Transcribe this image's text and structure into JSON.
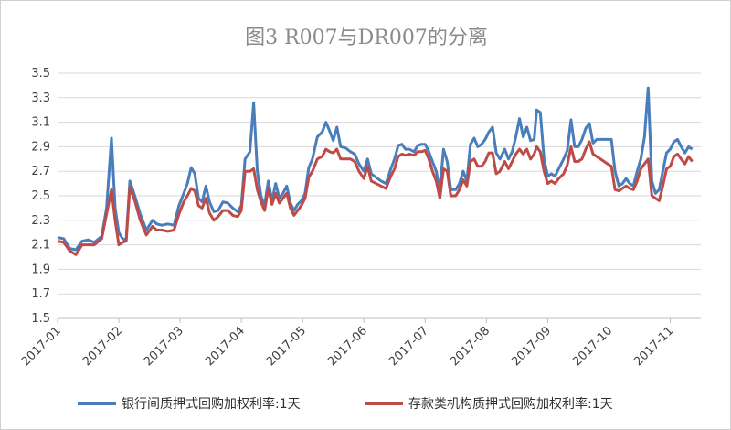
{
  "chart_data": {
    "type": "line",
    "title": "图3 R007与DR007的分离",
    "xlabel": "",
    "ylabel": "",
    "ylim": [
      1.5,
      3.5
    ],
    "yticks": [
      "3.5",
      "3.3",
      "3.1",
      "2.9",
      "2.7",
      "2.5",
      "2.3",
      "2.1",
      "1.9",
      "1.7",
      "1.5"
    ],
    "x_tick_labels": [
      "2017-01",
      "2017-02",
      "2017-03",
      "2017-04",
      "2017-05",
      "2017-06",
      "2017-07",
      "2017-08",
      "2017-09",
      "2017-10",
      "2017-11"
    ],
    "grid": true,
    "legend_position": "bottom",
    "series": [
      {
        "name": "银行间质押式回购加权利率:1天",
        "color": "#4a7ebb",
        "points": [
          [
            0.0,
            2.16
          ],
          [
            0.1,
            2.15
          ],
          [
            0.2,
            2.07
          ],
          [
            0.3,
            2.06
          ],
          [
            0.4,
            2.13
          ],
          [
            0.5,
            2.14
          ],
          [
            0.6,
            2.12
          ],
          [
            0.72,
            2.17
          ],
          [
            0.8,
            2.4
          ],
          [
            0.88,
            2.97
          ],
          [
            0.94,
            2.4
          ],
          [
            1.0,
            2.2
          ],
          [
            1.06,
            2.15
          ],
          [
            1.12,
            2.14
          ],
          [
            1.18,
            2.62
          ],
          [
            1.26,
            2.5
          ],
          [
            1.35,
            2.35
          ],
          [
            1.45,
            2.22
          ],
          [
            1.55,
            2.3
          ],
          [
            1.62,
            2.27
          ],
          [
            1.7,
            2.26
          ],
          [
            1.8,
            2.27
          ],
          [
            1.9,
            2.26
          ],
          [
            1.98,
            2.42
          ],
          [
            2.06,
            2.52
          ],
          [
            2.12,
            2.6
          ],
          [
            2.18,
            2.73
          ],
          [
            2.24,
            2.68
          ],
          [
            2.3,
            2.48
          ],
          [
            2.36,
            2.45
          ],
          [
            2.42,
            2.58
          ],
          [
            2.48,
            2.45
          ],
          [
            2.55,
            2.37
          ],
          [
            2.62,
            2.38
          ],
          [
            2.7,
            2.45
          ],
          [
            2.78,
            2.44
          ],
          [
            2.86,
            2.4
          ],
          [
            2.94,
            2.37
          ],
          [
            3.0,
            2.42
          ],
          [
            3.06,
            2.8
          ],
          [
            3.14,
            2.86
          ],
          [
            3.2,
            3.26
          ],
          [
            3.26,
            2.7
          ],
          [
            3.32,
            2.5
          ],
          [
            3.38,
            2.42
          ],
          [
            3.44,
            2.62
          ],
          [
            3.5,
            2.46
          ],
          [
            3.56,
            2.6
          ],
          [
            3.62,
            2.48
          ],
          [
            3.68,
            2.52
          ],
          [
            3.74,
            2.58
          ],
          [
            3.8,
            2.44
          ],
          [
            3.86,
            2.38
          ],
          [
            3.92,
            2.43
          ],
          [
            3.98,
            2.46
          ],
          [
            4.04,
            2.52
          ],
          [
            4.1,
            2.73
          ],
          [
            4.16,
            2.8
          ],
          [
            4.24,
            2.98
          ],
          [
            4.32,
            3.02
          ],
          [
            4.38,
            3.1
          ],
          [
            4.44,
            3.03
          ],
          [
            4.5,
            2.95
          ],
          [
            4.56,
            3.06
          ],
          [
            4.62,
            2.9
          ],
          [
            4.7,
            2.89
          ],
          [
            4.78,
            2.86
          ],
          [
            4.85,
            2.84
          ],
          [
            4.92,
            2.76
          ],
          [
            5.0,
            2.7
          ],
          [
            5.06,
            2.8
          ],
          [
            5.12,
            2.68
          ],
          [
            5.2,
            2.65
          ],
          [
            5.28,
            2.62
          ],
          [
            5.36,
            2.6
          ],
          [
            5.44,
            2.72
          ],
          [
            5.5,
            2.8
          ],
          [
            5.56,
            2.91
          ],
          [
            5.62,
            2.92
          ],
          [
            5.68,
            2.88
          ],
          [
            5.74,
            2.88
          ],
          [
            5.82,
            2.86
          ],
          [
            5.88,
            2.91
          ],
          [
            5.94,
            2.92
          ],
          [
            6.0,
            2.92
          ],
          [
            6.06,
            2.86
          ],
          [
            6.12,
            2.78
          ],
          [
            6.18,
            2.7
          ],
          [
            6.24,
            2.55
          ],
          [
            6.3,
            2.88
          ],
          [
            6.36,
            2.78
          ],
          [
            6.42,
            2.55
          ],
          [
            6.5,
            2.55
          ],
          [
            6.56,
            2.6
          ],
          [
            6.62,
            2.7
          ],
          [
            6.68,
            2.62
          ],
          [
            6.74,
            2.92
          ],
          [
            6.8,
            2.97
          ],
          [
            6.86,
            2.9
          ],
          [
            6.92,
            2.92
          ],
          [
            6.98,
            2.96
          ],
          [
            7.04,
            3.02
          ],
          [
            7.1,
            3.06
          ],
          [
            7.16,
            2.85
          ],
          [
            7.22,
            2.8
          ],
          [
            7.3,
            2.88
          ],
          [
            7.36,
            2.8
          ],
          [
            7.42,
            2.86
          ],
          [
            7.48,
            2.98
          ],
          [
            7.54,
            3.13
          ],
          [
            7.6,
            2.98
          ],
          [
            7.66,
            3.06
          ],
          [
            7.72,
            2.95
          ],
          [
            7.78,
            2.96
          ],
          [
            7.82,
            3.2
          ],
          [
            7.88,
            3.18
          ],
          [
            7.94,
            2.8
          ],
          [
            8.0,
            2.66
          ],
          [
            8.06,
            2.68
          ],
          [
            8.12,
            2.66
          ],
          [
            8.18,
            2.72
          ],
          [
            8.26,
            2.8
          ],
          [
            8.32,
            2.87
          ],
          [
            8.38,
            3.12
          ],
          [
            8.44,
            2.9
          ],
          [
            8.5,
            2.9
          ],
          [
            8.56,
            2.96
          ],
          [
            8.62,
            3.05
          ],
          [
            8.68,
            3.09
          ],
          [
            8.74,
            2.93
          ],
          [
            8.8,
            2.96
          ],
          [
            8.86,
            2.96
          ],
          [
            8.92,
            2.96
          ],
          [
            8.98,
            2.96
          ],
          [
            9.04,
            2.96
          ],
          [
            9.1,
            2.7
          ],
          [
            9.16,
            2.58
          ],
          [
            9.22,
            2.6
          ],
          [
            9.28,
            2.64
          ],
          [
            9.34,
            2.6
          ],
          [
            9.4,
            2.58
          ],
          [
            9.46,
            2.7
          ],
          [
            9.52,
            2.8
          ],
          [
            9.58,
            2.98
          ],
          [
            9.64,
            3.38
          ],
          [
            9.7,
            2.62
          ],
          [
            9.76,
            2.52
          ],
          [
            9.82,
            2.55
          ],
          [
            9.88,
            2.7
          ],
          [
            9.94,
            2.85
          ],
          [
            10.0,
            2.88
          ],
          [
            10.06,
            2.94
          ],
          [
            10.12,
            2.96
          ],
          [
            10.18,
            2.9
          ],
          [
            10.24,
            2.85
          ],
          [
            10.3,
            2.9
          ],
          [
            10.36,
            2.88
          ]
        ]
      },
      {
        "name": "存款类机构质押式回购加权利率:1天",
        "color": "#be4b48",
        "points": [
          [
            0.0,
            2.13
          ],
          [
            0.1,
            2.12
          ],
          [
            0.2,
            2.05
          ],
          [
            0.3,
            2.02
          ],
          [
            0.4,
            2.1
          ],
          [
            0.5,
            2.1
          ],
          [
            0.6,
            2.1
          ],
          [
            0.72,
            2.15
          ],
          [
            0.8,
            2.35
          ],
          [
            0.88,
            2.55
          ],
          [
            0.94,
            2.3
          ],
          [
            1.0,
            2.1
          ],
          [
            1.06,
            2.12
          ],
          [
            1.12,
            2.13
          ],
          [
            1.18,
            2.57
          ],
          [
            1.26,
            2.46
          ],
          [
            1.35,
            2.3
          ],
          [
            1.45,
            2.18
          ],
          [
            1.55,
            2.25
          ],
          [
            1.62,
            2.22
          ],
          [
            1.7,
            2.22
          ],
          [
            1.8,
            2.21
          ],
          [
            1.9,
            2.22
          ],
          [
            1.98,
            2.35
          ],
          [
            2.06,
            2.45
          ],
          [
            2.12,
            2.5
          ],
          [
            2.18,
            2.56
          ],
          [
            2.24,
            2.54
          ],
          [
            2.3,
            2.42
          ],
          [
            2.36,
            2.4
          ],
          [
            2.42,
            2.48
          ],
          [
            2.48,
            2.36
          ],
          [
            2.55,
            2.3
          ],
          [
            2.62,
            2.33
          ],
          [
            2.7,
            2.38
          ],
          [
            2.78,
            2.38
          ],
          [
            2.86,
            2.34
          ],
          [
            2.94,
            2.33
          ],
          [
            3.0,
            2.38
          ],
          [
            3.06,
            2.7
          ],
          [
            3.14,
            2.7
          ],
          [
            3.2,
            2.72
          ],
          [
            3.26,
            2.55
          ],
          [
            3.32,
            2.45
          ],
          [
            3.38,
            2.38
          ],
          [
            3.44,
            2.56
          ],
          [
            3.5,
            2.43
          ],
          [
            3.56,
            2.52
          ],
          [
            3.62,
            2.44
          ],
          [
            3.68,
            2.48
          ],
          [
            3.74,
            2.52
          ],
          [
            3.8,
            2.4
          ],
          [
            3.86,
            2.34
          ],
          [
            3.92,
            2.38
          ],
          [
            3.98,
            2.42
          ],
          [
            4.04,
            2.48
          ],
          [
            4.1,
            2.65
          ],
          [
            4.16,
            2.7
          ],
          [
            4.24,
            2.8
          ],
          [
            4.32,
            2.82
          ],
          [
            4.38,
            2.88
          ],
          [
            4.44,
            2.86
          ],
          [
            4.5,
            2.85
          ],
          [
            4.56,
            2.88
          ],
          [
            4.62,
            2.8
          ],
          [
            4.7,
            2.8
          ],
          [
            4.78,
            2.8
          ],
          [
            4.85,
            2.78
          ],
          [
            4.92,
            2.7
          ],
          [
            5.0,
            2.64
          ],
          [
            5.06,
            2.74
          ],
          [
            5.12,
            2.62
          ],
          [
            5.2,
            2.6
          ],
          [
            5.28,
            2.58
          ],
          [
            5.36,
            2.56
          ],
          [
            5.44,
            2.66
          ],
          [
            5.5,
            2.72
          ],
          [
            5.56,
            2.82
          ],
          [
            5.62,
            2.84
          ],
          [
            5.68,
            2.83
          ],
          [
            5.74,
            2.84
          ],
          [
            5.82,
            2.83
          ],
          [
            5.88,
            2.86
          ],
          [
            5.94,
            2.86
          ],
          [
            6.0,
            2.87
          ],
          [
            6.06,
            2.8
          ],
          [
            6.12,
            2.7
          ],
          [
            6.18,
            2.62
          ],
          [
            6.24,
            2.48
          ],
          [
            6.3,
            2.72
          ],
          [
            6.36,
            2.7
          ],
          [
            6.42,
            2.5
          ],
          [
            6.5,
            2.5
          ],
          [
            6.56,
            2.55
          ],
          [
            6.62,
            2.63
          ],
          [
            6.68,
            2.58
          ],
          [
            6.74,
            2.78
          ],
          [
            6.8,
            2.8
          ],
          [
            6.86,
            2.74
          ],
          [
            6.92,
            2.74
          ],
          [
            6.98,
            2.78
          ],
          [
            7.04,
            2.85
          ],
          [
            7.1,
            2.85
          ],
          [
            7.16,
            2.68
          ],
          [
            7.22,
            2.7
          ],
          [
            7.3,
            2.78
          ],
          [
            7.36,
            2.72
          ],
          [
            7.42,
            2.78
          ],
          [
            7.48,
            2.84
          ],
          [
            7.54,
            2.88
          ],
          [
            7.6,
            2.84
          ],
          [
            7.66,
            2.88
          ],
          [
            7.72,
            2.8
          ],
          [
            7.78,
            2.84
          ],
          [
            7.82,
            2.9
          ],
          [
            7.88,
            2.86
          ],
          [
            7.94,
            2.7
          ],
          [
            8.0,
            2.6
          ],
          [
            8.06,
            2.62
          ],
          [
            8.12,
            2.6
          ],
          [
            8.18,
            2.64
          ],
          [
            8.26,
            2.68
          ],
          [
            8.32,
            2.75
          ],
          [
            8.38,
            2.9
          ],
          [
            8.44,
            2.78
          ],
          [
            8.5,
            2.78
          ],
          [
            8.56,
            2.8
          ],
          [
            8.62,
            2.88
          ],
          [
            8.68,
            2.94
          ],
          [
            8.74,
            2.84
          ],
          [
            8.8,
            2.82
          ],
          [
            8.86,
            2.8
          ],
          [
            8.92,
            2.78
          ],
          [
            8.98,
            2.76
          ],
          [
            9.04,
            2.74
          ],
          [
            9.1,
            2.55
          ],
          [
            9.16,
            2.54
          ],
          [
            9.22,
            2.56
          ],
          [
            9.28,
            2.58
          ],
          [
            9.34,
            2.56
          ],
          [
            9.4,
            2.55
          ],
          [
            9.46,
            2.62
          ],
          [
            9.52,
            2.72
          ],
          [
            9.58,
            2.76
          ],
          [
            9.64,
            2.8
          ],
          [
            9.7,
            2.5
          ],
          [
            9.76,
            2.48
          ],
          [
            9.82,
            2.46
          ],
          [
            9.88,
            2.58
          ],
          [
            9.94,
            2.72
          ],
          [
            10.0,
            2.74
          ],
          [
            10.06,
            2.82
          ],
          [
            10.12,
            2.84
          ],
          [
            10.18,
            2.8
          ],
          [
            10.24,
            2.76
          ],
          [
            10.3,
            2.82
          ],
          [
            10.36,
            2.78
          ]
        ]
      }
    ]
  }
}
